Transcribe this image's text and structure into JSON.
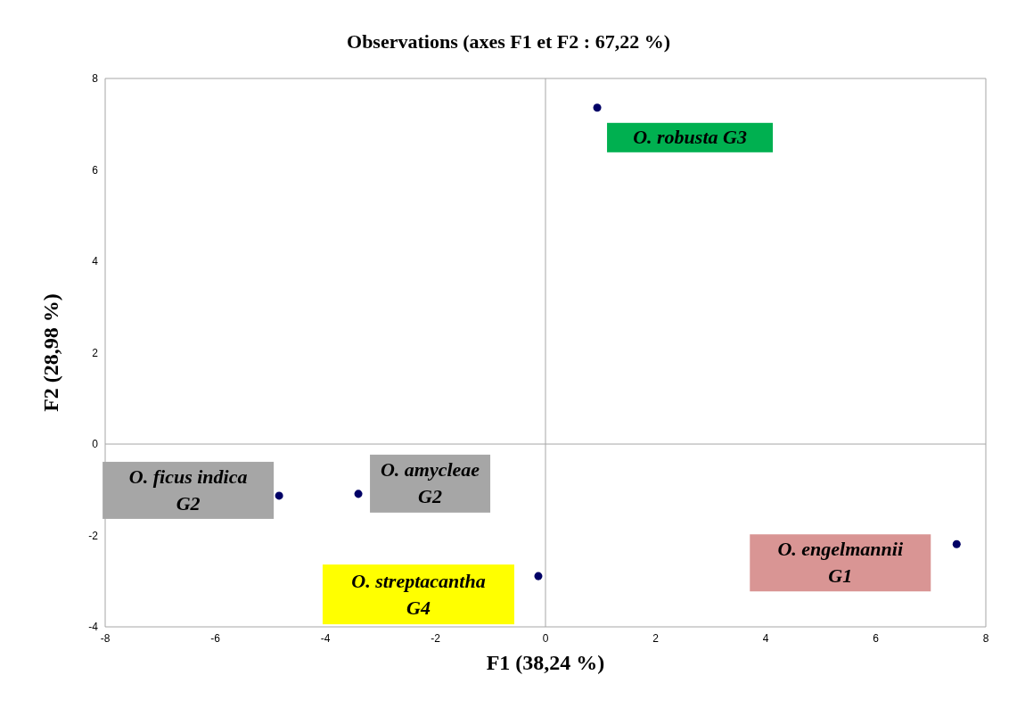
{
  "chart_data": {
    "type": "scatter",
    "title": "Observations (axes F1 et F2 : 67,22 %)",
    "xlabel": "F1 (38,24 %)",
    "ylabel": "F2 (28,98 %)",
    "xlim": [
      -8,
      8
    ],
    "xticks": [
      -8,
      -6,
      -4,
      -2,
      0,
      2,
      4,
      6,
      8
    ],
    "ylim": [
      -4,
      8
    ],
    "yticks": [
      -4,
      -2,
      0,
      2,
      4,
      6,
      8
    ],
    "marker": "circle",
    "series": [
      {
        "name": "O. robusta G3",
        "color": "#000066",
        "x": [
          0.94
        ],
        "values": [
          7.36
        ]
      },
      {
        "name": "O. ficus indica G2",
        "color": "#000066",
        "x": [
          -4.84
        ],
        "values": [
          -1.13
        ]
      },
      {
        "name": "O. amycleae G2",
        "color": "#000066",
        "x": [
          -3.4
        ],
        "values": [
          -1.09
        ]
      },
      {
        "name": "O. streptacantha G4",
        "color": "#000066",
        "x": [
          -0.13
        ],
        "values": [
          -2.89
        ]
      },
      {
        "name": "O. engelmannii G1",
        "color": "#000066",
        "x": [
          7.47
        ],
        "values": [
          -2.19
        ]
      }
    ]
  }
}
